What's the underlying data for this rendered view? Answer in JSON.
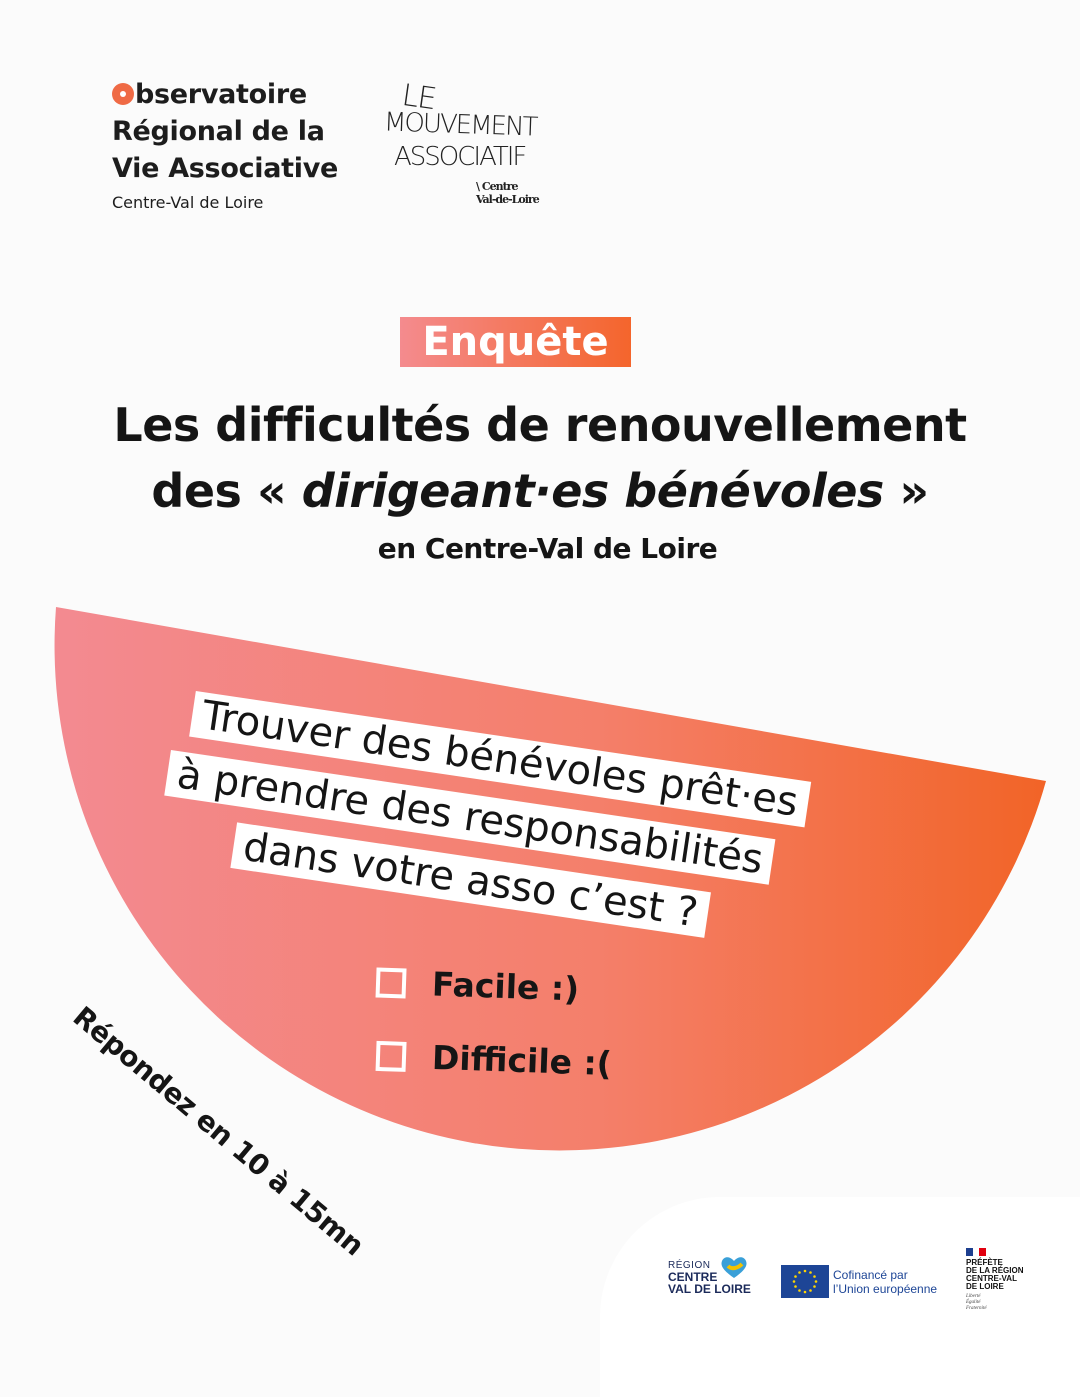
{
  "logos": {
    "orva": {
      "line1_initial": "O",
      "line1_rest": "bservatoire",
      "line2": "Régional de la",
      "line3": "Vie Associative",
      "subline": "Centre-Val de Loire"
    },
    "mouvement": {
      "word1": "LE",
      "word2": "MOUVEMENT",
      "word3": "ASSOCIATIF",
      "sub1": "\\ Centre",
      "sub2": "Val-de-Loire"
    }
  },
  "badge": "Enquête",
  "title": {
    "line1": "Les difficultés de renouvellement",
    "line2_prefix": "des « ",
    "line2_italic": "dirigeant·es bénévoles",
    "line2_suffix": " »",
    "subtitle": "en Centre-Val de Loire"
  },
  "question": {
    "line1": "Trouver des bénévoles prêt·es",
    "line2": "à  prendre des responsabilités",
    "line3": "dans votre asso c’est ?"
  },
  "options": [
    "Facile :)",
    "Difficile :("
  ],
  "reply_time": "Répondez en 10 à 15mn",
  "partners": {
    "region_small": "RÉGION",
    "region_line1": "CENTRE",
    "region_line2": "VAL DE LOIRE",
    "eu_line1": "Cofinancé par",
    "eu_line2": "l’Union européenne",
    "pref_line1": "PRÉFÈTE",
    "pref_line2": "DE LA RÉGION",
    "pref_line3": "CENTRE-VAL",
    "pref_line4": "DE LOIRE",
    "pref_motto1": "Liberté",
    "pref_motto2": "Égalité",
    "pref_motto3": "Fraternité"
  },
  "colors": {
    "gradient_start": "#f38a91",
    "gradient_end": "#f26427",
    "text": "#151515",
    "background": "#fbfbfb"
  }
}
